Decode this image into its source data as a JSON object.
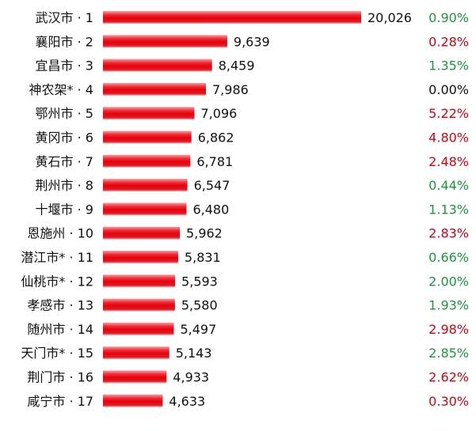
{
  "chart_data": {
    "type": "bar",
    "orientation": "horizontal",
    "categories": [
      "武汉市 · 1",
      "襄阳市 · 2",
      "宜昌市 · 3",
      "神农架* · 4",
      "鄂州市 · 5",
      "黄冈市 · 6",
      "黄石市 · 7",
      "荆州市 · 8",
      "十堰市 · 9",
      "恩施州 · 10",
      "潜江市* · 11",
      "仙桃市* · 12",
      "孝感市 · 13",
      "随州市 · 14",
      "天门市* · 15",
      "荆门市 · 16",
      "咸宁市 · 17"
    ],
    "values": [
      20026,
      9639,
      8459,
      7986,
      7096,
      6862,
      6781,
      6547,
      6480,
      5962,
      5831,
      5593,
      5580,
      5497,
      5143,
      4933,
      4633
    ],
    "value_labels": [
      "20,026",
      "9,639",
      "8,459",
      "7,986",
      "7,096",
      "6,862",
      "6,781",
      "6,547",
      "6,480",
      "5,962",
      "5,831",
      "5,593",
      "5,580",
      "5,497",
      "5,143",
      "4,933",
      "4,633"
    ],
    "percent_labels": [
      "0.90%",
      "0.28%",
      "1.35%",
      "0.00%",
      "5.22%",
      "4.80%",
      "2.48%",
      "0.44%",
      "1.13%",
      "2.83%",
      "0.66%",
      "2.00%",
      "1.93%",
      "2.98%",
      "2.85%",
      "2.62%",
      "0.30%"
    ],
    "percent_colors": [
      "#1a9a3a",
      "#d9000f",
      "#1a9a3a",
      "#111111",
      "#d9000f",
      "#d9000f",
      "#d9000f",
      "#1a9a3a",
      "#1a9a3a",
      "#d9000f",
      "#1a9a3a",
      "#1a9a3a",
      "#1a9a3a",
      "#d9000f",
      "#1a9a3a",
      "#d9000f",
      "#d9000f"
    ],
    "bar_color": "#e8000b",
    "xlim": [
      0,
      20026
    ],
    "grid": false,
    "title": "",
    "xlabel": "",
    "ylabel": ""
  }
}
